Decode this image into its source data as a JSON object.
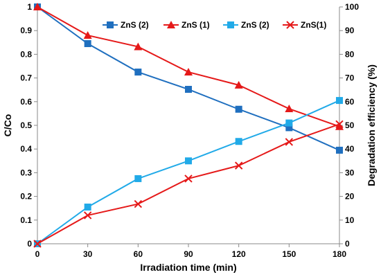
{
  "chart_data": {
    "type": "line",
    "x": [
      0,
      30,
      60,
      90,
      120,
      150,
      180
    ],
    "xlabel": "Irradiation time (min)",
    "ylabel_left": "C/Co",
    "ylabel_right": "Degradation efficiency (%)",
    "xlim": [
      0,
      180
    ],
    "ylim_left": [
      0,
      1
    ],
    "ylim_right": [
      0,
      100
    ],
    "x_ticks": [
      "0",
      "30",
      "60",
      "90",
      "120",
      "150",
      "180"
    ],
    "y_left_ticks": [
      "0",
      "0.1",
      "0.2",
      "0.3",
      "0.4",
      "0.5",
      "0.6",
      "0.7",
      "0.8",
      "0.9",
      "1"
    ],
    "y_right_ticks": [
      "0",
      "10",
      "20",
      "30",
      "40",
      "50",
      "60",
      "70",
      "80",
      "90",
      "100"
    ],
    "grid": false,
    "legend_position": "top",
    "series": [
      {
        "name": "ZnS (2)",
        "axis": "left",
        "color": "#1f6fbf",
        "marker": "square",
        "values": [
          1.0,
          0.845,
          0.725,
          0.652,
          0.568,
          0.49,
          0.395
        ]
      },
      {
        "name": "ZnS (1)",
        "axis": "left",
        "color": "#e51919",
        "marker": "triangle",
        "values": [
          1.0,
          0.88,
          0.832,
          0.725,
          0.67,
          0.57,
          0.495
        ]
      },
      {
        "name": "ZnS (2)",
        "axis": "right",
        "color": "#21aae8",
        "marker": "square",
        "values": [
          0,
          15.5,
          27.5,
          35,
          43.2,
          51,
          60.5
        ]
      },
      {
        "name": "ZnS(1)",
        "axis": "right",
        "color": "#e51919",
        "marker": "x",
        "values": [
          0,
          12,
          16.8,
          27.5,
          33,
          43,
          50.5
        ]
      }
    ]
  }
}
